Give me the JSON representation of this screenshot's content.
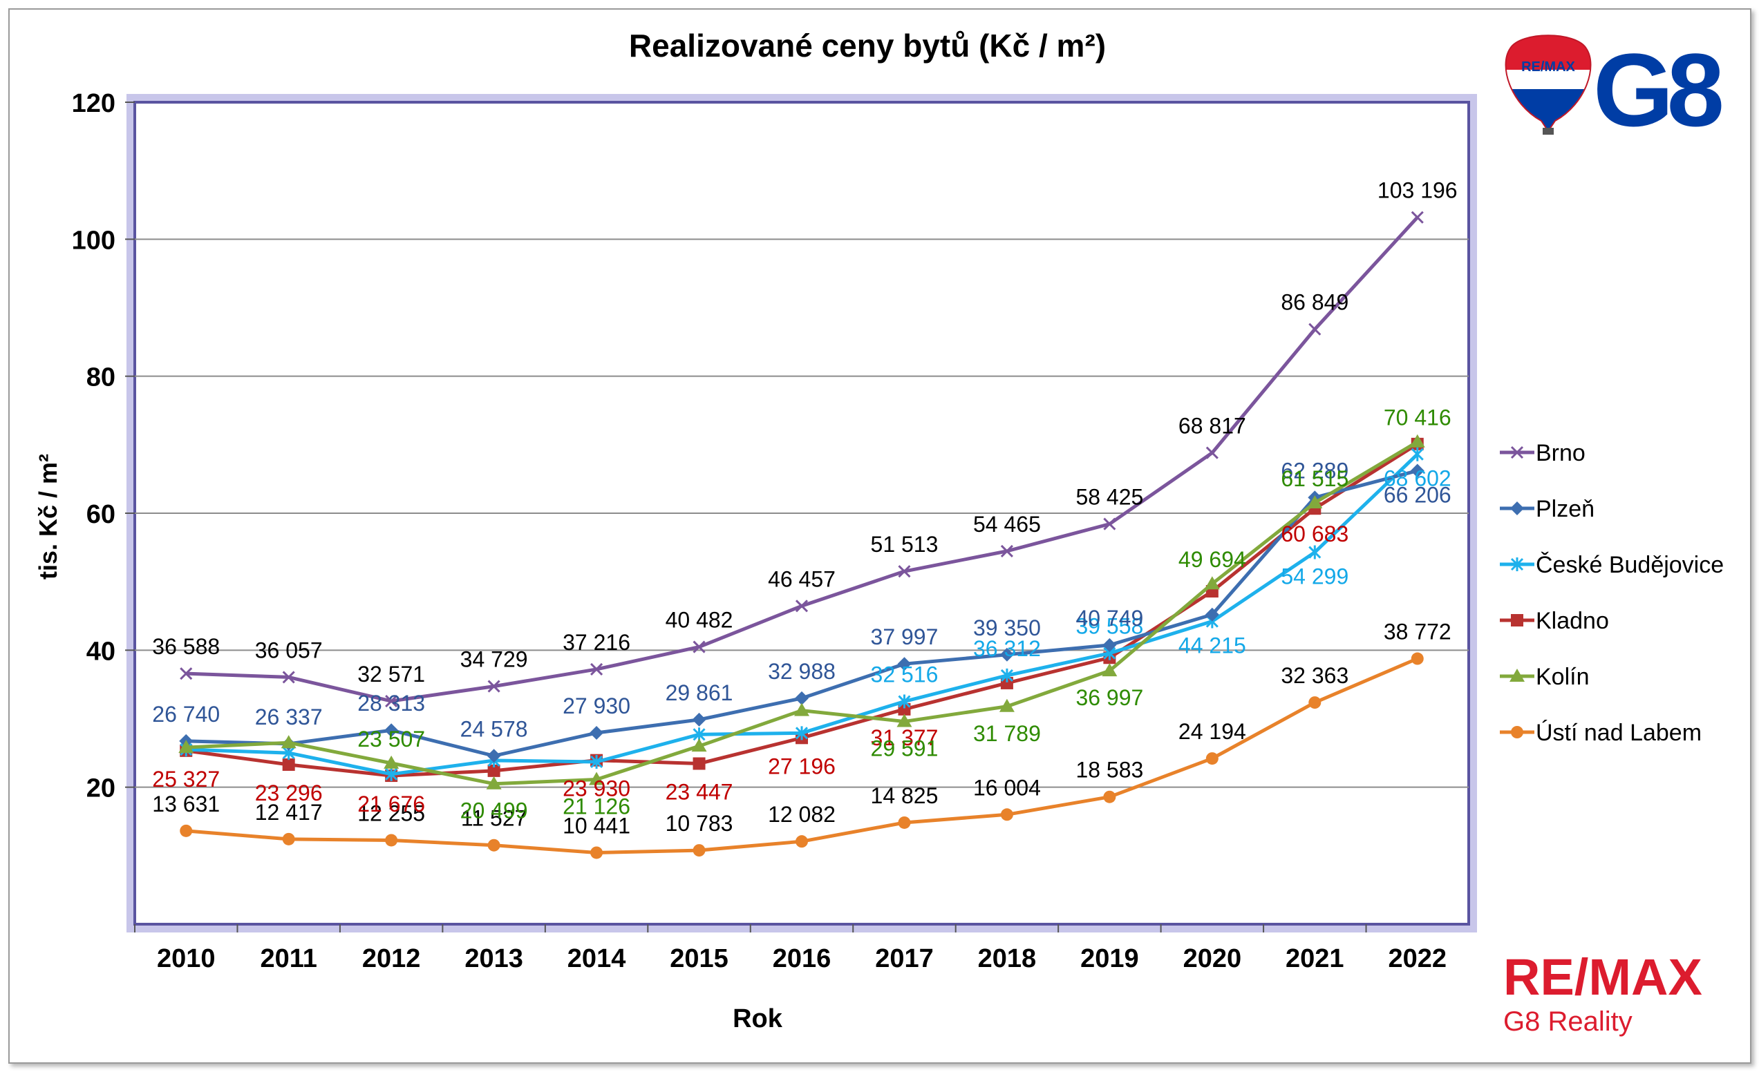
{
  "chart_data": {
    "type": "line",
    "title": "Realizované ceny bytů (Kč / m²)",
    "xlabel": "Rok",
    "ylabel": "tis. Kč / m²",
    "ylim": [
      0,
      120
    ],
    "yticks": [
      20,
      40,
      60,
      80,
      100,
      120
    ],
    "grid": true,
    "legend_position": "right",
    "categories": [
      "2010",
      "2011",
      "2012",
      "2013",
      "2014",
      "2015",
      "2016",
      "2017",
      "2018",
      "2019",
      "2020",
      "2021",
      "2022"
    ],
    "series": [
      {
        "name": "Brno",
        "color": "#7b559c",
        "marker": "x",
        "label_color": "#000000",
        "values": [
          36588,
          36057,
          32571,
          34729,
          37216,
          40482,
          46457,
          51513,
          54465,
          58425,
          68817,
          86849,
          103196
        ],
        "labels": [
          "36 588",
          "36 057",
          "32 571",
          "34 729",
          "37 216",
          "40 482",
          "46 457",
          "51 513",
          "54 465",
          "58 425",
          "68 817",
          "86 849",
          "103 196"
        ]
      },
      {
        "name": "Plzeň",
        "color": "#3d6eb0",
        "marker": "diamond",
        "label_color": "#2f5597",
        "values": [
          26740,
          26337,
          28313,
          24578,
          27930,
          29861,
          32988,
          37997,
          39350,
          40749,
          45200,
          62289,
          66206
        ],
        "labels": [
          "26 740",
          "26 337",
          "28 313",
          "24 578",
          "27 930",
          "29 861",
          "32 988",
          "37 997",
          "39 350",
          "40 749",
          "",
          "62 289",
          "66 206"
        ]
      },
      {
        "name": "České Budějovice",
        "color": "#1eb1ec",
        "marker": "star",
        "label_color": "#13a8e8",
        "values": [
          25500,
          25000,
          21900,
          23900,
          23700,
          27700,
          27900,
          32516,
          36312,
          39558,
          44215,
          54299,
          68602
        ],
        "labels": [
          "",
          "",
          "",
          "",
          "",
          "",
          "",
          "32 516",
          "36 312",
          "39 558",
          "44 215",
          "54 299",
          "68 602"
        ]
      },
      {
        "name": "Kladno",
        "color": "#b83230",
        "marker": "square",
        "label_color": "#c00000",
        "values": [
          25327,
          23296,
          21676,
          22400,
          23930,
          23447,
          27196,
          31377,
          35200,
          38900,
          48600,
          60683,
          70100
        ],
        "labels": [
          "25 327",
          "23 296",
          "21 676",
          "",
          "23 930",
          "23 447",
          "27 196",
          "31 377",
          "",
          "",
          "",
          "60 683",
          ""
        ]
      },
      {
        "name": "Kolín",
        "color": "#82a93c",
        "marker": "triangle",
        "label_color": "#2e8b00",
        "values": [
          25800,
          26500,
          23507,
          20499,
          21126,
          26000,
          31200,
          29591,
          31789,
          36997,
          49694,
          61515,
          70416
        ],
        "labels": [
          "",
          "",
          "23 507",
          "20 499",
          "21 126",
          "",
          "",
          "29 591",
          "31 789",
          "36 997",
          "49 694",
          "61 515",
          "70 416"
        ]
      },
      {
        "name": "Ústí nad Labem",
        "color": "#e8822a",
        "marker": "circle",
        "label_color": "#000000",
        "values": [
          13631,
          12417,
          12255,
          11527,
          10441,
          10783,
          12082,
          14825,
          16004,
          18583,
          24194,
          32363,
          38772
        ],
        "labels": [
          "13 631",
          "12 417",
          "12 255",
          "11 527",
          "10 441",
          "10 783",
          "12 082",
          "14 825",
          "16 004",
          "18 583",
          "24 194",
          "32 363",
          "38 772"
        ]
      }
    ]
  },
  "logos": {
    "balloon_text": "RE/MAX",
    "top_mark": "G8",
    "bottom_brand": "RE/MAX",
    "bottom_sub": "G8 Reality",
    "brand_red": "#dc1c2e",
    "brand_blue": "#003da5"
  }
}
